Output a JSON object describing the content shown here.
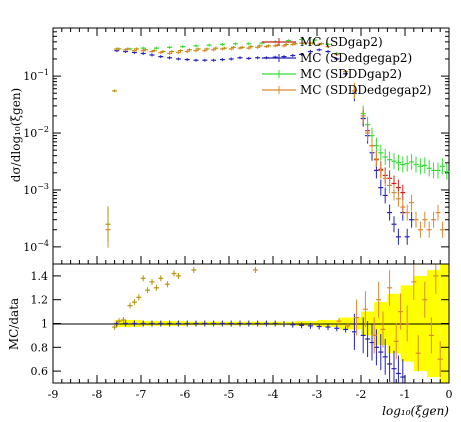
{
  "chart_data": [
    {
      "panel": "main",
      "type": "scatter",
      "ylabel": "dσ/dlog₁₀(ξgen)",
      "yscale": "log",
      "xlim": [
        -9,
        0
      ],
      "ylim": [
        5e-05,
        0.7
      ],
      "yticks": [
        {
          "v": 0.0001,
          "base": "10",
          "exp": "−4"
        },
        {
          "v": 0.001,
          "base": "10",
          "exp": "−3"
        },
        {
          "v": 0.01,
          "base": "10",
          "exp": "−2"
        },
        {
          "v": 0.1,
          "base": "10",
          "exp": "−1"
        }
      ],
      "legend_position": "top-right",
      "series": [
        {
          "name": "MC (SDgap2)",
          "color": "#cc2222",
          "points": [
            [
              -1.95,
              0.018
            ],
            [
              -1.85,
              0.011
            ],
            [
              -1.75,
              0.006
            ],
            [
              -1.65,
              0.0034
            ],
            [
              -1.55,
              0.0023
            ],
            [
              -1.45,
              0.0018
            ],
            [
              -1.35,
              0.0016
            ],
            [
              -1.25,
              0.0013
            ],
            [
              -1.15,
              0.0011
            ],
            [
              -1.05,
              0.0009
            ]
          ]
        },
        {
          "name": "MC (SDedgegap2)",
          "color": "#2222bb",
          "points": [
            [
              -7.55,
              0.28
            ],
            [
              -7.35,
              0.27
            ],
            [
              -7.15,
              0.26
            ],
            [
              -6.95,
              0.25
            ],
            [
              -6.75,
              0.235
            ],
            [
              -6.55,
              0.22
            ],
            [
              -6.35,
              0.21
            ],
            [
              -6.15,
              0.2
            ],
            [
              -5.95,
              0.195
            ],
            [
              -5.75,
              0.19
            ],
            [
              -5.55,
              0.19
            ],
            [
              -5.35,
              0.19
            ],
            [
              -5.15,
              0.195
            ],
            [
              -4.95,
              0.2
            ],
            [
              -4.75,
              0.21
            ],
            [
              -4.55,
              0.205
            ],
            [
              -4.35,
              0.21
            ],
            [
              -4.15,
              0.21
            ],
            [
              -3.95,
              0.215
            ],
            [
              -3.75,
              0.22
            ],
            [
              -3.55,
              0.23
            ],
            [
              -3.35,
              0.24
            ],
            [
              -3.15,
              0.27
            ],
            [
              -2.95,
              0.29
            ],
            [
              -2.75,
              0.27
            ],
            [
              -2.55,
              0.2
            ],
            [
              -2.35,
              0.11
            ],
            [
              -2.15,
              0.05
            ],
            [
              -1.95,
              0.018
            ],
            [
              -1.85,
              0.009
            ],
            [
              -1.75,
              0.0045
            ],
            [
              -1.65,
              0.0022
            ],
            [
              -1.55,
              0.0011
            ],
            [
              -1.45,
              0.0008
            ],
            [
              -1.35,
              0.0004
            ],
            [
              -1.25,
              0.00025
            ],
            [
              -1.15,
              0.00015
            ],
            [
              -1.05,
              0.0004
            ],
            [
              -0.95,
              0.00015
            ],
            [
              -0.85,
              0.0003
            ]
          ]
        },
        {
          "name": "MC (SDDDgap2)",
          "color": "#33dd33",
          "points": [
            [
              -7.55,
              0.3
            ],
            [
              -7.25,
              0.3
            ],
            [
              -6.95,
              0.31
            ],
            [
              -6.65,
              0.31
            ],
            [
              -6.35,
              0.32
            ],
            [
              -6.05,
              0.33
            ],
            [
              -5.75,
              0.34
            ],
            [
              -5.45,
              0.35
            ],
            [
              -5.15,
              0.36
            ],
            [
              -4.85,
              0.37
            ],
            [
              -4.55,
              0.37
            ],
            [
              -4.25,
              0.38
            ],
            [
              -3.95,
              0.4
            ],
            [
              -3.65,
              0.42
            ],
            [
              -3.35,
              0.44
            ],
            [
              -3.05,
              0.43
            ],
            [
              -2.75,
              0.36
            ],
            [
              -2.55,
              0.25
            ],
            [
              -2.35,
              0.12
            ],
            [
              -2.15,
              0.055
            ],
            [
              -1.95,
              0.022
            ],
            [
              -1.85,
              0.014
            ],
            [
              -1.75,
              0.009
            ],
            [
              -1.65,
              0.006
            ],
            [
              -1.55,
              0.0045
            ],
            [
              -1.45,
              0.0038
            ],
            [
              -1.35,
              0.0034
            ],
            [
              -1.25,
              0.0032
            ],
            [
              -1.15,
              0.003
            ],
            [
              -1.05,
              0.0028
            ],
            [
              -0.95,
              0.0029
            ],
            [
              -0.85,
              0.0031
            ],
            [
              -0.75,
              0.0028
            ],
            [
              -0.65,
              0.0026
            ],
            [
              -0.55,
              0.0027
            ],
            [
              -0.45,
              0.0024
            ],
            [
              -0.35,
              0.0022
            ],
            [
              -0.25,
              0.0022
            ],
            [
              -0.15,
              0.0026
            ],
            [
              -0.05,
              0.0021
            ]
          ]
        },
        {
          "name": "MC (SDDDedgegap2)",
          "color": "#dd8833",
          "points": [
            [
              -7.75,
              0.0002
            ],
            [
              -7.55,
              0.3
            ],
            [
              -7.35,
              0.29
            ],
            [
              -7.15,
              0.28
            ],
            [
              -6.95,
              0.28
            ],
            [
              -6.75,
              0.27
            ],
            [
              -6.55,
              0.26
            ],
            [
              -6.35,
              0.25
            ],
            [
              -6.15,
              0.26
            ],
            [
              -5.95,
              0.27
            ],
            [
              -5.75,
              0.28
            ],
            [
              -5.55,
              0.28
            ],
            [
              -5.35,
              0.29
            ],
            [
              -5.15,
              0.3
            ],
            [
              -4.95,
              0.3
            ],
            [
              -4.75,
              0.31
            ],
            [
              -4.55,
              0.31
            ],
            [
              -4.35,
              0.32
            ],
            [
              -4.15,
              0.33
            ],
            [
              -3.95,
              0.34
            ],
            [
              -3.75,
              0.34
            ],
            [
              -3.55,
              0.36
            ],
            [
              -3.35,
              0.38
            ],
            [
              -3.15,
              0.38
            ],
            [
              -2.95,
              0.36
            ],
            [
              -2.75,
              0.33
            ],
            [
              -2.55,
              0.24
            ],
            [
              -2.35,
              0.12
            ],
            [
              -2.15,
              0.055
            ],
            [
              -1.95,
              0.02
            ],
            [
              -1.85,
              0.01
            ],
            [
              -1.75,
              0.006
            ],
            [
              -1.65,
              0.0035
            ],
            [
              -1.55,
              0.0022
            ],
            [
              -1.45,
              0.0016
            ],
            [
              -1.35,
              0.0012
            ],
            [
              -1.25,
              0.0009
            ],
            [
              -1.15,
              0.0007
            ],
            [
              -1.05,
              0.0005
            ],
            [
              -0.95,
              0.0004
            ],
            [
              -0.85,
              0.0006
            ],
            [
              -0.75,
              0.0003
            ],
            [
              -0.65,
              0.0002
            ],
            [
              -0.55,
              0.0003
            ],
            [
              -0.45,
              0.0002
            ],
            [
              -0.35,
              0.0003
            ],
            [
              -0.25,
              0.0004
            ],
            [
              -0.15,
              0.0002
            ]
          ]
        },
        {
          "name": "",
          "color": "#b8920a",
          "points": [
            [
              -7.75,
              0.00025
            ],
            [
              -7.6,
              0.055
            ],
            [
              -7.5,
              0.3
            ],
            [
              -7.3,
              0.3
            ],
            [
              -7.1,
              0.3
            ],
            [
              -6.9,
              0.29
            ],
            [
              -6.7,
              0.28
            ],
            [
              -6.5,
              0.27
            ],
            [
              -6.3,
              0.27
            ],
            [
              -6.1,
              0.28
            ],
            [
              -5.9,
              0.29
            ],
            [
              -5.7,
              0.3
            ],
            [
              -5.5,
              0.3
            ],
            [
              -5.3,
              0.31
            ],
            [
              -5.1,
              0.31
            ],
            [
              -4.9,
              0.32
            ],
            [
              -4.7,
              0.32
            ],
            [
              -4.5,
              0.33
            ],
            [
              -4.3,
              0.34
            ],
            [
              -4.1,
              0.34
            ],
            [
              -3.9,
              0.35
            ],
            [
              -3.7,
              0.36
            ],
            [
              -3.5,
              0.37
            ],
            [
              -3.3,
              0.38
            ],
            [
              -3.1,
              0.38
            ],
            [
              -2.9,
              0.37
            ]
          ]
        }
      ]
    },
    {
      "panel": "ratio",
      "type": "scatter",
      "ylabel": "MC/data",
      "xlabel": "log₁₀(ξgen)",
      "xlim": [
        -9,
        0
      ],
      "ylim": [
        0.5,
        1.5
      ],
      "xticks": [
        "-9",
        "-8",
        "-7",
        "-6",
        "-5",
        "-4",
        "-3",
        "-2",
        "-1",
        "0"
      ],
      "yticks": [
        "0.6",
        "0.8",
        "1",
        "1.2",
        "1.4"
      ],
      "reference_line": 1,
      "band_color": "#ffff00",
      "band": [
        [
          -7.6,
          0.03
        ],
        [
          -7.0,
          0.02
        ],
        [
          -6.0,
          0.015
        ],
        [
          -5.0,
          0.015
        ],
        [
          -4.0,
          0.015
        ],
        [
          -3.5,
          0.02
        ],
        [
          -3.0,
          0.03
        ],
        [
          -2.5,
          0.05
        ],
        [
          -2.0,
          0.1
        ],
        [
          -1.7,
          0.18
        ],
        [
          -1.4,
          0.25
        ],
        [
          -1.1,
          0.32
        ],
        [
          -0.8,
          0.4
        ],
        [
          -0.5,
          0.45
        ],
        [
          -0.2,
          0.5
        ],
        [
          0.0,
          0.5
        ]
      ],
      "series": [
        {
          "name": "MC (SDedgegap2)",
          "color": "#2222bb",
          "points": [
            [
              -7.55,
              1.0
            ],
            [
              -7.35,
              1.0
            ],
            [
              -7.15,
              1.0
            ],
            [
              -6.95,
              1.0
            ],
            [
              -6.75,
              1.0
            ],
            [
              -6.55,
              1.0
            ],
            [
              -6.35,
              1.0
            ],
            [
              -6.15,
              1.0
            ],
            [
              -5.95,
              1.0
            ],
            [
              -5.75,
              1.0
            ],
            [
              -5.55,
              1.0
            ],
            [
              -5.35,
              1.0
            ],
            [
              -5.15,
              1.0
            ],
            [
              -4.95,
              1.0
            ],
            [
              -4.75,
              1.0
            ],
            [
              -4.55,
              1.0
            ],
            [
              -4.35,
              1.0
            ],
            [
              -4.15,
              1.0
            ],
            [
              -3.95,
              1.0
            ],
            [
              -3.75,
              0.995
            ],
            [
              -3.55,
              0.99
            ],
            [
              -3.35,
              0.985
            ],
            [
              -3.15,
              0.98
            ],
            [
              -2.95,
              0.975
            ],
            [
              -2.75,
              0.97
            ],
            [
              -2.55,
              0.96
            ],
            [
              -2.35,
              0.95
            ],
            [
              -2.15,
              0.93
            ],
            [
              -1.95,
              0.9
            ],
            [
              -1.85,
              0.87
            ],
            [
              -1.75,
              0.84
            ],
            [
              -1.65,
              0.8
            ],
            [
              -1.55,
              0.76
            ],
            [
              -1.45,
              0.72
            ],
            [
              -1.35,
              0.66
            ],
            [
              -1.25,
              0.62
            ],
            [
              -1.15,
              0.58
            ],
            [
              -1.05,
              0.55
            ]
          ]
        },
        {
          "name": "MC (SDDDedgegap2)",
          "color": "#dd8833",
          "points": [
            [
              -2.5,
              1.02
            ],
            [
              -2.3,
              0.98
            ],
            [
              -2.1,
              1.05
            ],
            [
              -1.9,
              1.12
            ],
            [
              -1.7,
              0.9
            ],
            [
              -1.6,
              1.2
            ],
            [
              -1.5,
              0.95
            ],
            [
              -1.35,
              1.3
            ],
            [
              -1.2,
              0.85
            ],
            [
              -1.1,
              1.1
            ],
            [
              -0.95,
              1.0
            ],
            [
              -0.8,
              1.35
            ],
            [
              -0.7,
              0.75
            ],
            [
              -0.55,
              1.2
            ],
            [
              -0.4,
              0.9
            ],
            [
              -0.3,
              1.4
            ],
            [
              -0.2,
              0.7
            ]
          ]
        },
        {
          "name": "",
          "color": "#b8920a",
          "points": [
            [
              -7.6,
              0.97
            ],
            [
              -7.5,
              1.02
            ],
            [
              -7.4,
              1.03
            ],
            [
              -7.25,
              1.15
            ],
            [
              -7.15,
              1.18
            ],
            [
              -7.05,
              1.22
            ],
            [
              -6.95,
              1.38
            ],
            [
              -6.85,
              1.28
            ],
            [
              -6.75,
              1.35
            ],
            [
              -6.65,
              1.3
            ],
            [
              -6.55,
              1.38
            ],
            [
              -6.4,
              1.33
            ],
            [
              -6.25,
              1.42
            ],
            [
              -6.15,
              1.4
            ],
            [
              -5.8,
              1.45
            ],
            [
              -4.4,
              1.45
            ]
          ]
        }
      ]
    }
  ]
}
